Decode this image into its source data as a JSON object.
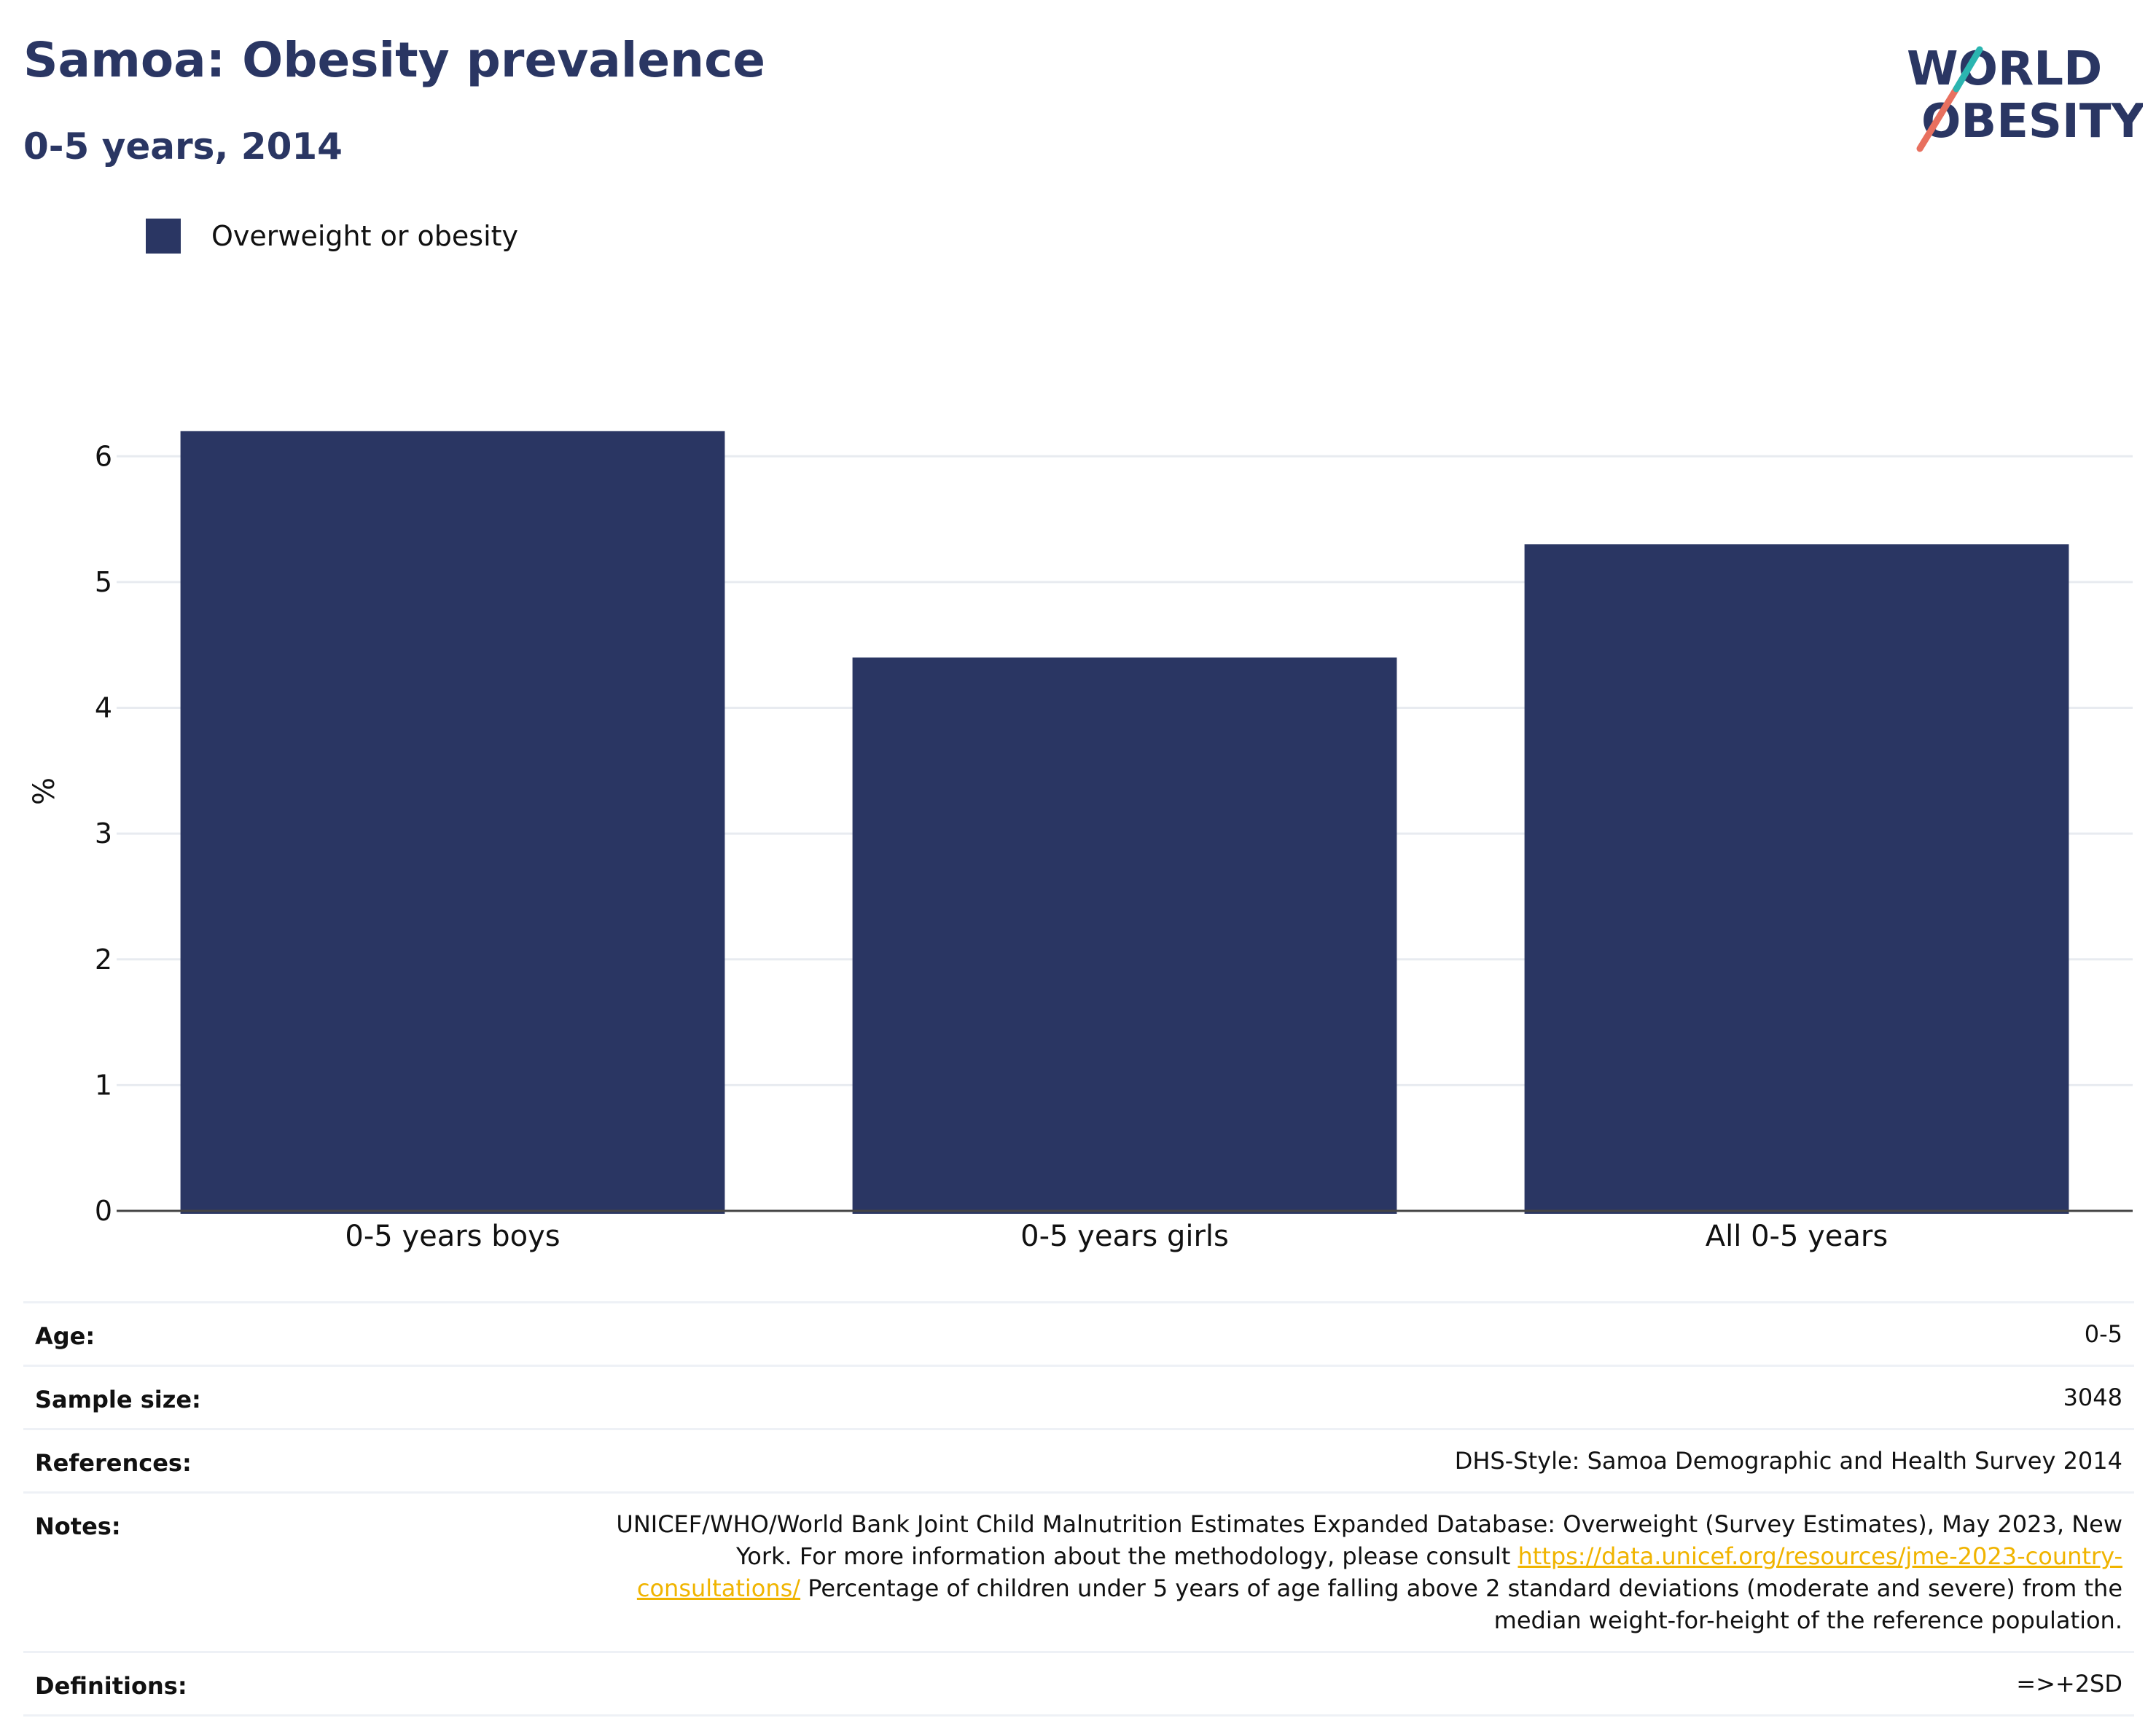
{
  "header": {
    "title": "Samoa: Obesity prevalence",
    "subtitle": "0-5 years, 2014"
  },
  "logo": {
    "line1": "WORLD",
    "line2": "OBESITY",
    "colors": [
      "#2a3663",
      "#e8705f",
      "#2bb5b0"
    ]
  },
  "chart_data": {
    "type": "bar",
    "categories": [
      "0-5 years boys",
      "0-5 years girls",
      "All 0-5 years"
    ],
    "series": [
      {
        "name": "Overweight or obesity",
        "values": [
          6.2,
          4.4,
          5.3
        ],
        "color": "#2a3663"
      }
    ],
    "ylabel": "%",
    "xlabel": "",
    "ylim": [
      0,
      6.5
    ],
    "yticks": [
      0,
      1,
      2,
      3,
      4,
      5,
      6
    ],
    "grid": true,
    "legend_position": "top-left"
  },
  "info": [
    {
      "key": "Age:",
      "value": "0-5"
    },
    {
      "key": "Sample size:",
      "value": "3048"
    },
    {
      "key": "References:",
      "value": "DHS-Style: Samoa Demographic and Health Survey 2014"
    },
    {
      "key": "Notes:",
      "value_before_link": "UNICEF/WHO/World Bank Joint Child Malnutrition Estimates Expanded Database: Overweight (Survey Estimates), May 2023, New York. For more information about the methodology, please consult ",
      "link": "https://data.unicef.org/resources/jme-2023-country-consultations/",
      "value_after_link": " Percentage of children under 5 years of age falling above 2 standard deviations (moderate and severe) from the median weight-for-height of the reference population."
    },
    {
      "key": "Definitions:",
      "value": "=>+2SD"
    }
  ]
}
